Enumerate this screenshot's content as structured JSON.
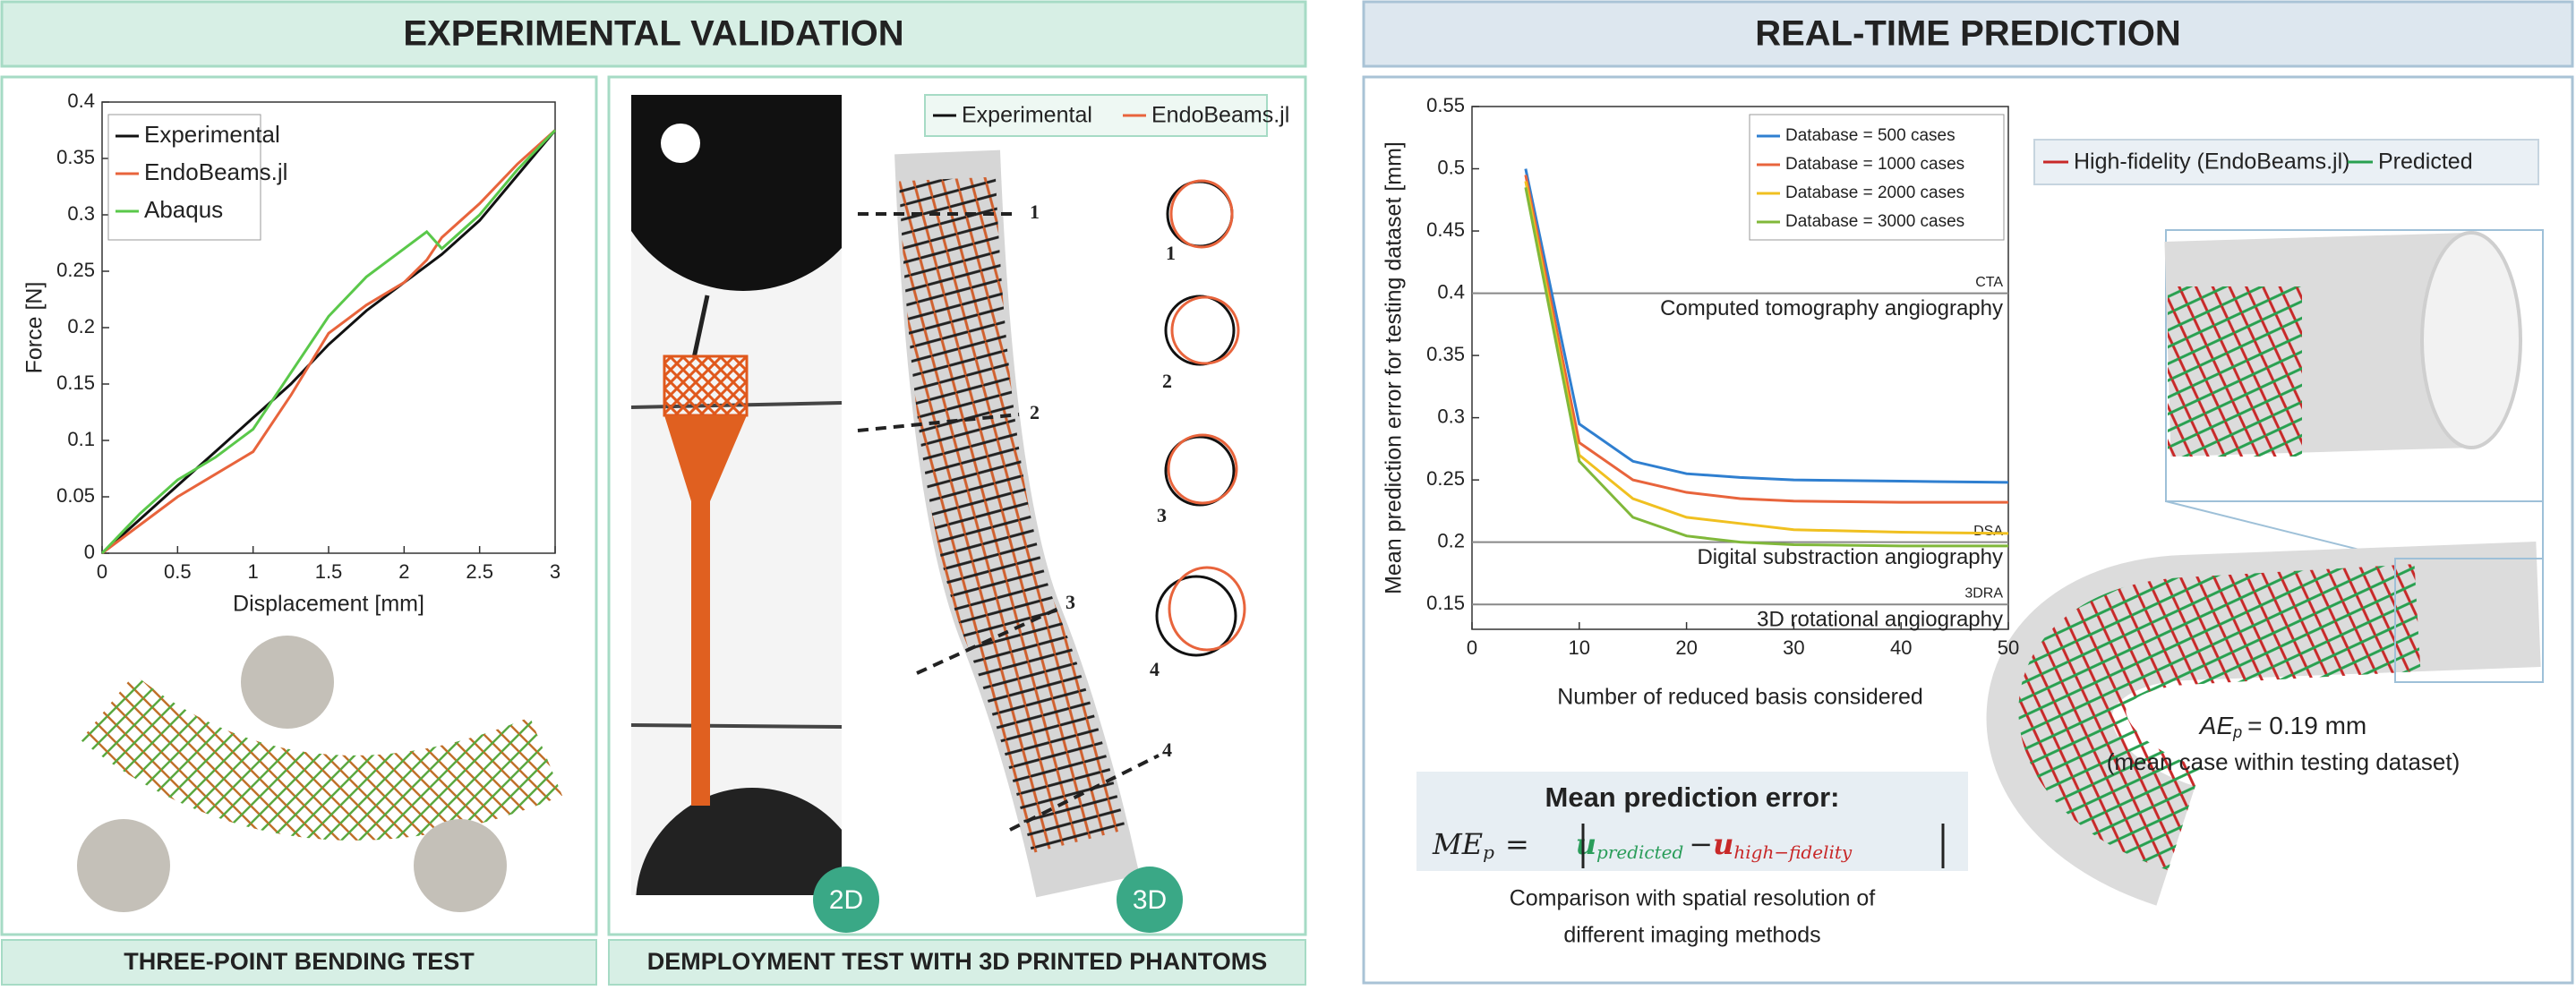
{
  "headers": {
    "left": "EXPERIMENTAL VALIDATION",
    "right": "REAL-TIME PREDICTION"
  },
  "footers": {
    "bending": "THREE-POINT BENDING TEST",
    "deployment": "DEMPLOYMENT TEST WITH 3D PRINTED PHANTOMS"
  },
  "deployment": {
    "legend": [
      "Experimental",
      "EndoBeams.jl"
    ],
    "sections": [
      "1",
      "2",
      "3",
      "4"
    ],
    "badges": [
      "2D",
      "3D"
    ]
  },
  "prediction": {
    "legend": [
      "High-fidelity (EndoBeams.jl)",
      "Predicted"
    ],
    "case_error": {
      "symbol": "AE",
      "subscript": "p",
      "text": "= 0.19 mm",
      "note": "(mean case within testing dataset)"
    },
    "formula": {
      "title": "Mean prediction error:",
      "lhs": "ME",
      "lhs_sub": "p",
      "equals": "=",
      "u1": "u",
      "u1_sub": "predicted",
      "minus": "−",
      "u2": "u",
      "u2_sub": "high−fidelity"
    },
    "caption": [
      "Comparison with spatial resolution of",
      "different imaging methods"
    ]
  },
  "chart_data": [
    {
      "type": "line",
      "x_label": "Displacement [mm]",
      "y_label": "Force [N]",
      "x": [
        0,
        0.25,
        0.5,
        0.75,
        1,
        1.25,
        1.5,
        1.75,
        2,
        2.15,
        2.25,
        2.5,
        2.75,
        3
      ],
      "series": [
        {
          "name": "Experimental",
          "color": "#111111",
          "values": [
            0,
            0.03,
            0.06,
            0.09,
            0.12,
            0.15,
            0.185,
            0.215,
            0.24,
            0.255,
            0.265,
            0.295,
            0.335,
            0.375
          ]
        },
        {
          "name": "EndoBeams.jl",
          "color": "#e8643c",
          "values": [
            0,
            0.025,
            0.05,
            0.07,
            0.09,
            0.14,
            0.195,
            0.22,
            0.24,
            0.26,
            0.28,
            0.31,
            0.345,
            0.375
          ]
        },
        {
          "name": "Abaqus",
          "color": "#5ac84a",
          "values": [
            0,
            0.035,
            0.065,
            0.085,
            0.11,
            0.16,
            0.21,
            0.245,
            0.27,
            0.285,
            0.27,
            0.3,
            0.34,
            0.375
          ]
        }
      ],
      "xlim": [
        0,
        3
      ],
      "xticks": [
        0,
        0.5,
        1,
        1.5,
        2,
        2.5,
        3
      ],
      "ylim": [
        0,
        0.4
      ],
      "yticks": [
        0,
        0.05,
        0.1,
        0.15,
        0.2,
        0.25,
        0.3,
        0.35,
        0.4
      ],
      "legend": "upper left"
    },
    {
      "type": "line",
      "x_label": "Number of reduced basis considered",
      "y_label": "Mean prediction error for testing dataset [mm]",
      "x": [
        5,
        10,
        15,
        20,
        25,
        30,
        40,
        50
      ],
      "series": [
        {
          "name": "Database = 500 cases",
          "color": "#2f7fd0",
          "values": [
            0.5,
            0.295,
            0.265,
            0.255,
            0.252,
            0.25,
            0.249,
            0.248
          ]
        },
        {
          "name": "Database = 1000 cases",
          "color": "#e8643c",
          "values": [
            0.495,
            0.28,
            0.25,
            0.24,
            0.235,
            0.233,
            0.232,
            0.232
          ]
        },
        {
          "name": "Database = 2000 cases",
          "color": "#f0c020",
          "values": [
            0.49,
            0.27,
            0.235,
            0.22,
            0.215,
            0.21,
            0.208,
            0.207
          ]
        },
        {
          "name": "Database = 3000 cases",
          "color": "#80b83a",
          "values": [
            0.485,
            0.265,
            0.22,
            0.205,
            0.2,
            0.198,
            0.197,
            0.197
          ]
        }
      ],
      "reference_lines": [
        {
          "value": 0.4,
          "label": "CTA",
          "description": "Computed tomography angiography"
        },
        {
          "value": 0.2,
          "label": "DSA",
          "description": "Digital substraction angiography"
        },
        {
          "value": 0.15,
          "label": "3DRA",
          "description": "3D rotational angiography"
        }
      ],
      "xlim": [
        0,
        50
      ],
      "xticks": [
        0,
        10,
        20,
        30,
        40,
        50
      ],
      "ylim": [
        0.13,
        0.55
      ],
      "yticks": [
        0.15,
        0.2,
        0.25,
        0.3,
        0.35,
        0.4,
        0.45,
        0.5,
        0.55
      ],
      "legend": "upper right"
    }
  ]
}
